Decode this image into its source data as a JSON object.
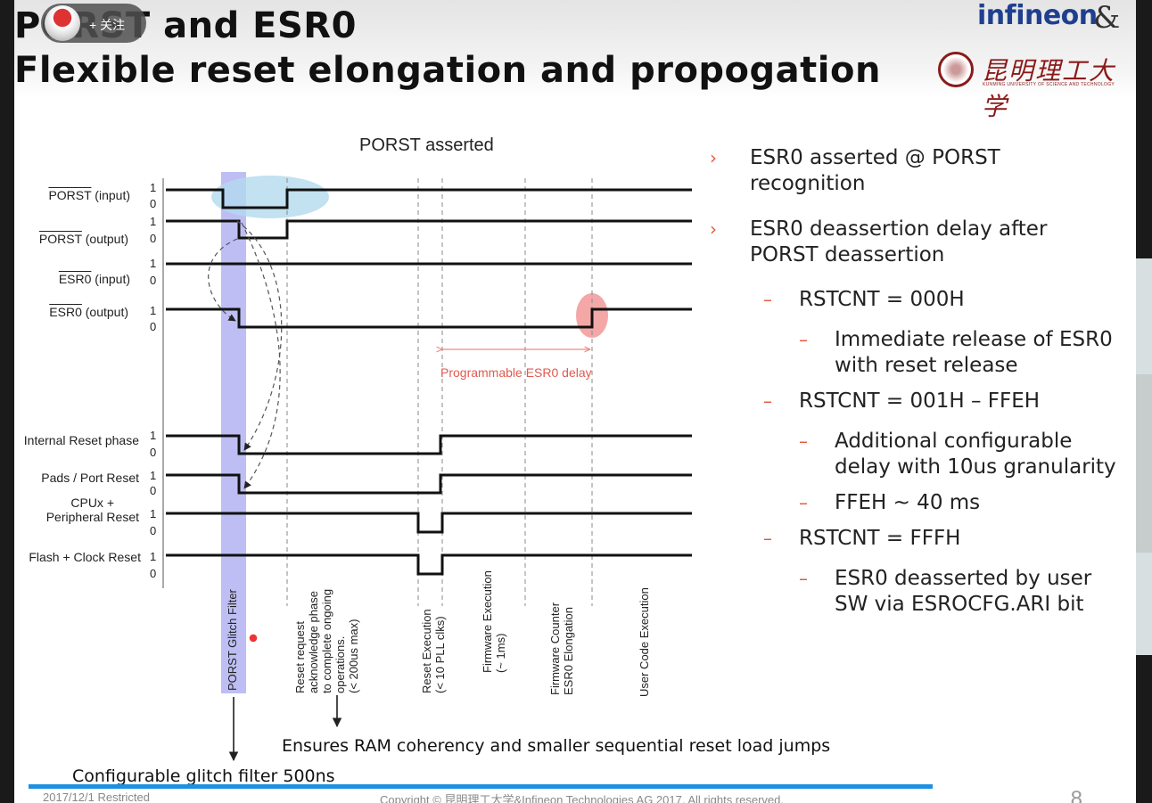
{
  "overlay": {
    "follow_label": "+ 关注"
  },
  "slide": {
    "title_line1": "PORST and ESR0",
    "title_line2": "Flexible reset elongation and propogation",
    "logo_company": "infineon",
    "logo_ampersand": "&",
    "university_name": "昆明理工大学",
    "university_sub": "KUNMING UNIVERSITY OF SCIENCE AND TECHNOLOGY",
    "page_number": "8",
    "footer_left": "2017/12/1  Restricted",
    "footer_center": "Copyright © 昆明理工大学&Infineon Technologies AG 2017. All rights reserved."
  },
  "diagram": {
    "heading": "PORST asserted",
    "signals": [
      {
        "label": "PORST (input)"
      },
      {
        "label": "PORST (output)"
      },
      {
        "label": "ESR0 (input)"
      },
      {
        "label": "ESR0 (output)"
      },
      {
        "label": "Internal Reset phase"
      },
      {
        "label": "Pads / Port Reset"
      },
      {
        "label_line1": "CPUx +",
        "label_line2": "Peripheral Reset"
      },
      {
        "label": "Flash + Clock Reset"
      }
    ],
    "level_high": "1",
    "level_low": "0",
    "delay_label": "Programmable ESR0 delay",
    "phases": [
      {
        "lines": [
          "PORST Glitch Filter"
        ]
      },
      {
        "lines": [
          "Reset request",
          "acknowledge phase",
          "to complete ongoing",
          "operations.",
          "(< 200us max)"
        ]
      },
      {
        "lines": [
          "Reset Execution",
          "(< 10 PLL clks)"
        ]
      },
      {
        "lines": [
          "Firmware Execution",
          "(~ 1ms)"
        ]
      },
      {
        "lines": [
          "Firmware Counter",
          "ESR0 Elongation"
        ]
      },
      {
        "lines": [
          "User Code Execution"
        ]
      }
    ],
    "note_ram": "Ensures RAM coherency and smaller sequential reset load jumps",
    "note_glitch": "Configurable glitch filter 500ns"
  },
  "bullets": [
    {
      "level": 1,
      "lines": [
        "ESR0 asserted @ PORST",
        "recognition"
      ]
    },
    {
      "level": 1,
      "lines": [
        "ESR0 deassertion delay after",
        "PORST deassertion"
      ]
    },
    {
      "level": 2,
      "lines": [
        "RSTCNT = 000H"
      ]
    },
    {
      "level": 3,
      "lines": [
        "Immediate release of ESR0",
        "with reset release"
      ]
    },
    {
      "level": 2,
      "lines": [
        "RSTCNT = 001H – FFEH"
      ]
    },
    {
      "level": 3,
      "lines": [
        "Additional configurable",
        "delay  with 10us granularity"
      ]
    },
    {
      "level": 3,
      "lines": [
        "FFEH  ~ 40 ms"
      ]
    },
    {
      "level": 2,
      "lines": [
        "RSTCNT = FFFH"
      ]
    },
    {
      "level": 3,
      "lines": [
        "ESR0 deasserted by user",
        "SW via ESROCFG.ARI bit"
      ]
    }
  ],
  "colors": {
    "accent_bullet": "#e05a40",
    "glitch_band": "#6e6ee8",
    "highlight_blue": "#b3d9ee",
    "highlight_red": "#f08a8a",
    "footer_bar": "#1e90e0"
  }
}
